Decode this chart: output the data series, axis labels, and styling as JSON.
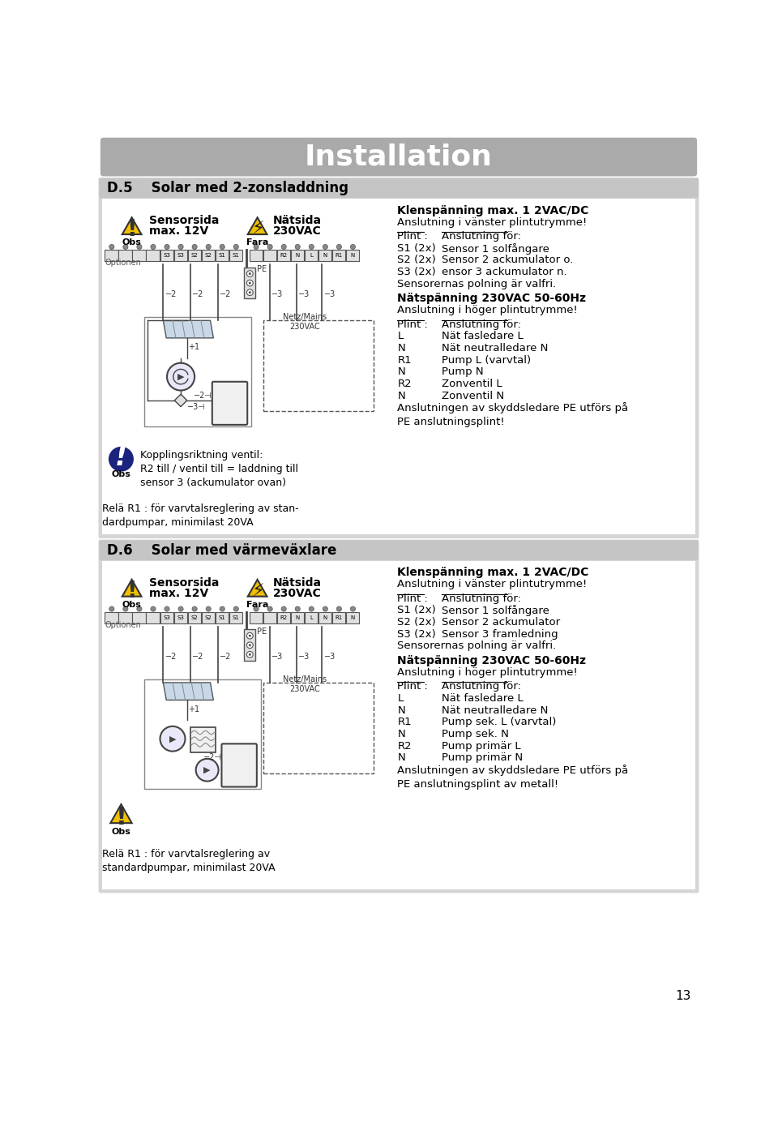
{
  "page_bg": "#ffffff",
  "header_bg": "#aaaaaa",
  "header_text": "Installation",
  "header_text_color": "#ffffff",
  "page_number": "13",
  "section_d5_title": "D.5    Solar med 2-zonsladdning",
  "section_d6_title": "D.6    Solar med värmeväxlare",
  "d5_left_title1": "Sensorsida",
  "d5_left_title2": "max. 12V",
  "d5_left_label": "Obs",
  "d5_right_title1": "Nätsida",
  "d5_right_title2": "230VAC",
  "d5_right_label": "Fara",
  "d5_optionen": "Optionen",
  "d5_netz": "Netz/Mains\n230VAC",
  "d5_pe": "PE",
  "d5_obs_text": "Kopplingsriktning ventil:\nR2 till / ventil till = laddning till\nsensor 3 (ackumulator ovan)",
  "d5_obs_label": "Obs",
  "d5_rela_text": "Relä R1 : för varvtalsreglering av stan-\ndardpumpar, minimilast 20VA",
  "d5_right_klen": "Klenspänning max. 1 2VAC/DC",
  "d5_right_ans1": "Anslutning i vänster plintutrymme!",
  "d5_right_plint": "Plint :",
  "d5_right_ans_for": "Anslutning för:",
  "d5_right_s1": "S1 (2x)",
  "d5_right_s1_desc": "Sensor 1 solfångare",
  "d5_right_s2": "S2 (2x)",
  "d5_right_s2_desc": "Sensor 2 ackumulator o.",
  "d5_right_s3": "S3 (2x)",
  "d5_right_s3_desc": "ensor 3 ackumulator n.",
  "d5_right_sensor_pol": "Sensorernas polning är valfri.",
  "d5_right_nats": "Nätspänning 230VAC 50-60Hz",
  "d5_right_ansl_hoger": "Anslutning i höger plintutrymme!",
  "d5_right_plint2": "Plint :",
  "d5_right_ans_for2": "Anslutning för:",
  "d5_right_L": "L",
  "d5_right_L_desc": "Nät fasledare L",
  "d5_right_N1": "N",
  "d5_right_N1_desc": "Nät neutralledare N",
  "d5_right_R1": "R1",
  "d5_right_R1_desc": "Pump L (varvtal)",
  "d5_right_N2": "N",
  "d5_right_N2_desc": "Pump N",
  "d5_right_R2": "R2",
  "d5_right_R2_desc": "Zonventil L",
  "d5_right_N3": "N",
  "d5_right_N3_desc": "Zonventil N",
  "d5_right_pe_text": "Anslutningen av skyddsledare PE utförs på\nPE anslutningsplint!",
  "d6_left_title1": "Sensorsida",
  "d6_left_title2": "max. 12V",
  "d6_left_label": "Obs",
  "d6_right_title1": "Nätsida",
  "d6_right_title2": "230VAC",
  "d6_right_label": "Fara",
  "d6_optionen": "Optionen",
  "d6_netz": "Netz/Mains\n230VAC",
  "d6_pe": "PE",
  "d6_obs_label": "Obs",
  "d6_rela_text": "Relä R1 : för varvtalsreglering av\nstandardpumpar, minimilast 20VA",
  "d6_right_klen": "Klenspänning max. 1 2VAC/DC",
  "d6_right_ans1": "Anslutning i vänster plintutrymme!",
  "d6_right_plint": "Plint :",
  "d6_right_ans_for": "Anslutning för:",
  "d6_right_s1": "S1 (2x)",
  "d6_right_s1_desc": "Sensor 1 solfångare",
  "d6_right_s2": "S2 (2x)",
  "d6_right_s2_desc": "Sensor 2 ackumulator",
  "d6_right_s3": "S3 (2x)",
  "d6_right_s3_desc": "Sensor 3 framledning",
  "d6_right_sensor_pol": "Sensorernas polning är valfri.",
  "d6_right_nats": "Nätspänning 230VAC 50-60Hz",
  "d6_right_ansl_hoger": "Anslutning i höger plintutrymme!",
  "d6_right_plint2": "Plint :",
  "d6_right_ans_for2": "Anslutning för:",
  "d6_right_L": "L",
  "d6_right_L_desc": "Nät fasledare L",
  "d6_right_N1": "N",
  "d6_right_N1_desc": "Nät neutralledare N",
  "d6_right_R1": "R1",
  "d6_right_R1_desc": "Pump sek. L (varvtal)",
  "d6_right_N2": "N",
  "d6_right_N2_desc": "Pump sek. N",
  "d6_right_R2": "R2",
  "d6_right_R2_desc": "Pump primär L",
  "d6_right_N3": "N",
  "d6_right_N3_desc": "Pump primär N",
  "d6_right_pe_text": "Anslutningen av skyddsledare PE utförs på\nPE anslutningsplint av metall!"
}
